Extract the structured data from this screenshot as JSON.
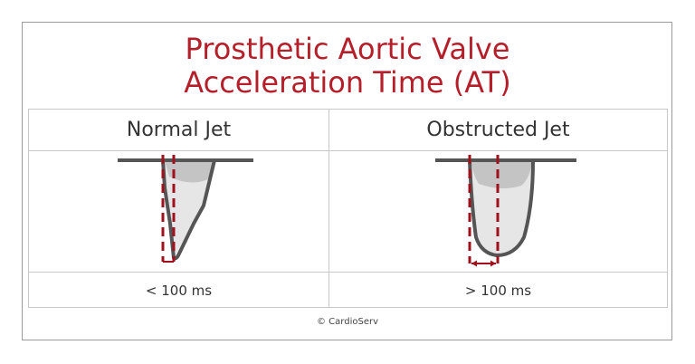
{
  "title": {
    "line1": "Prosthetic Aortic Valve",
    "line2": "Acceleration Time (AT)"
  },
  "columns": [
    {
      "header": "Normal Jet",
      "value": "< 100 ms"
    },
    {
      "header": "Obstructed Jet",
      "value": "> 100 ms"
    }
  ],
  "copyright": "© CardioServ",
  "colors": {
    "title": "#b51f2a",
    "marker": "#a0111d",
    "outline": "#555555",
    "fill_light": "#e6e6e6",
    "fill_dark": "#c4c4c4"
  }
}
